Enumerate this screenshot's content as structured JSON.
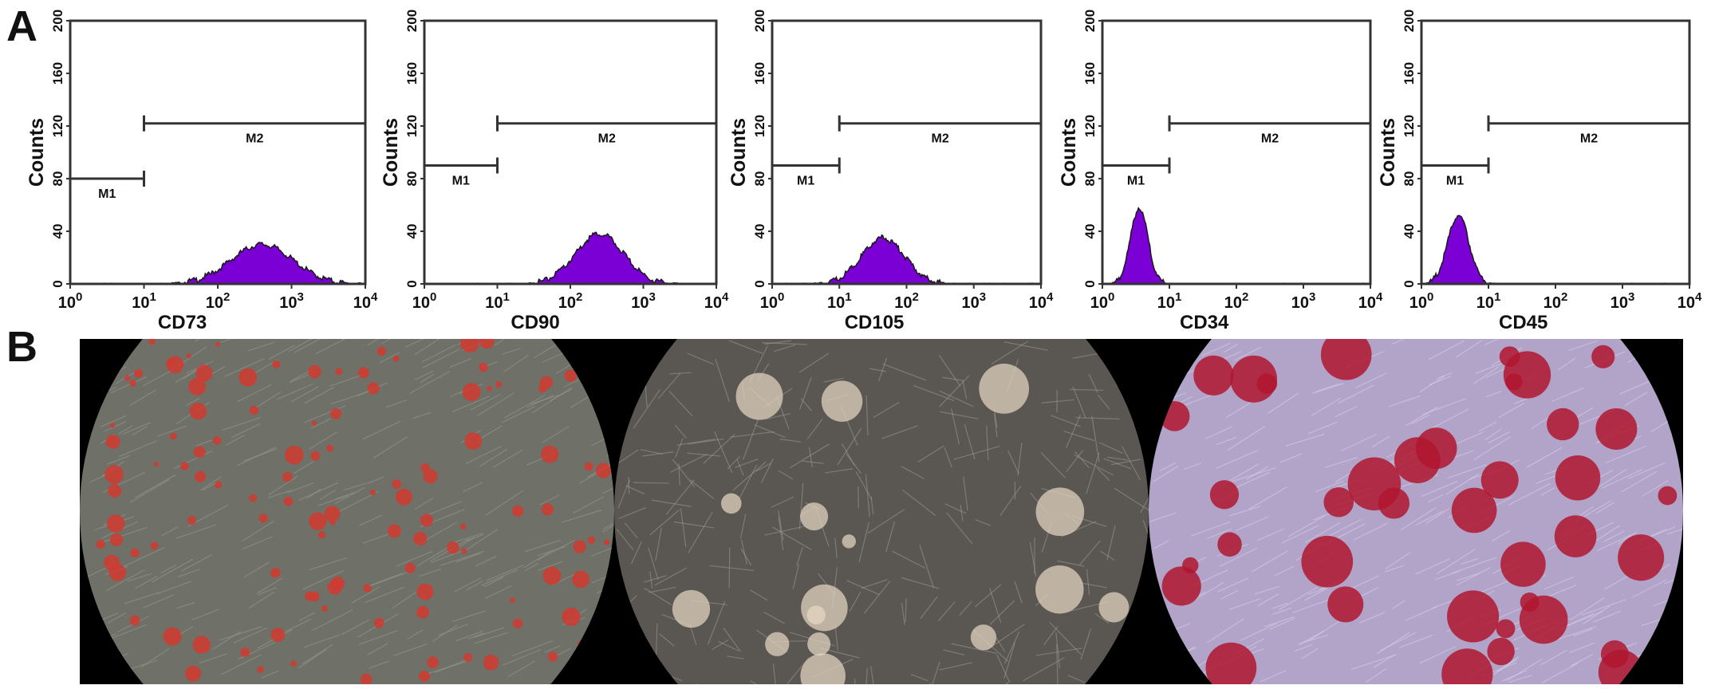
{
  "panel_labels": {
    "a": "A",
    "b": "B"
  },
  "chart_data": [
    {
      "type": "area",
      "xlabel": "CD73",
      "ylabel": "Counts",
      "xscale": "log",
      "xlim": [
        1,
        10000
      ],
      "ylim": [
        0,
        200
      ],
      "yticks": [
        "0",
        "40",
        "80",
        "120",
        "160",
        "200"
      ],
      "xticks": [
        "10^0",
        "10^1",
        "10^2",
        "10^3",
        "10^4"
      ],
      "fill_color": "#7a00d6",
      "markers": [
        {
          "label": "M1",
          "x_range": [
            1,
            10
          ],
          "y": 80
        },
        {
          "label": "M2",
          "x_range": [
            10,
            10000
          ],
          "y": 122
        }
      ],
      "peak": {
        "center_log": 2.6,
        "height": 30,
        "width": 0.42
      }
    },
    {
      "type": "area",
      "xlabel": "CD90",
      "ylabel": "Counts",
      "xscale": "log",
      "xlim": [
        1,
        10000
      ],
      "ylim": [
        0,
        200
      ],
      "yticks": [
        "0",
        "40",
        "80",
        "120",
        "160",
        "200"
      ],
      "xticks": [
        "10^0",
        "10^1",
        "10^2",
        "10^3",
        "10^4"
      ],
      "fill_color": "#7a00d6",
      "markers": [
        {
          "label": "M1",
          "x_range": [
            1,
            10
          ],
          "y": 90
        },
        {
          "label": "M2",
          "x_range": [
            10,
            10000
          ],
          "y": 122
        }
      ],
      "peak": {
        "center_log": 2.4,
        "height": 38,
        "width": 0.33
      }
    },
    {
      "type": "area",
      "xlabel": "CD105",
      "ylabel": "Counts",
      "xscale": "log",
      "xlim": [
        1,
        10000
      ],
      "ylim": [
        0,
        200
      ],
      "yticks": [
        "0",
        "40",
        "80",
        "120",
        "160",
        "200"
      ],
      "xticks": [
        "10^0",
        "10^1",
        "10^2",
        "10^3",
        "10^4"
      ],
      "fill_color": "#7a00d6",
      "markers": [
        {
          "label": "M1",
          "x_range": [
            1,
            10
          ],
          "y": 90
        },
        {
          "label": "M2",
          "x_range": [
            10,
            10000
          ],
          "y": 122
        }
      ],
      "peak": {
        "center_log": 1.65,
        "height": 35,
        "width": 0.32
      }
    },
    {
      "type": "area",
      "xlabel": "CD34",
      "ylabel": "Counts",
      "xscale": "log",
      "xlim": [
        1,
        10000
      ],
      "ylim": [
        0,
        200
      ],
      "yticks": [
        "0",
        "40",
        "80",
        "120",
        "160",
        "200"
      ],
      "xticks": [
        "10^0",
        "10^1",
        "10^2",
        "10^3",
        "10^4"
      ],
      "fill_color": "#7a00d6",
      "markers": [
        {
          "label": "M1",
          "x_range": [
            1,
            10
          ],
          "y": 90
        },
        {
          "label": "M2",
          "x_range": [
            10,
            10000
          ],
          "y": 122
        }
      ],
      "peak": {
        "center_log": 0.55,
        "height": 58,
        "width": 0.13
      }
    },
    {
      "type": "area",
      "xlabel": "CD45",
      "ylabel": "Counts",
      "xscale": "log",
      "xlim": [
        1,
        10000
      ],
      "ylim": [
        0,
        200
      ],
      "yticks": [
        "0",
        "40",
        "80",
        "120",
        "160",
        "200"
      ],
      "xticks": [
        "10^0",
        "10^1",
        "10^2",
        "10^3",
        "10^4"
      ],
      "fill_color": "#7a00d6",
      "markers": [
        {
          "label": "M1",
          "x_range": [
            1,
            10
          ],
          "y": 90
        },
        {
          "label": "M2",
          "x_range": [
            10,
            10000
          ],
          "y": 122
        }
      ],
      "peak": {
        "center_log": 0.55,
        "height": 52,
        "width": 0.16
      }
    }
  ],
  "micrographs": [
    {
      "name": "adipogenic-oil-red-stain",
      "background": "#6f7068",
      "spot_color": "#d23a30"
    },
    {
      "name": "neurogenic-phase-contrast",
      "background": "#5a5753",
      "spot_color": "#e8d8c4"
    },
    {
      "name": "osteogenic-alizarin-stain",
      "background": "#b1a4c8",
      "spot_color": "#b0162e"
    }
  ]
}
